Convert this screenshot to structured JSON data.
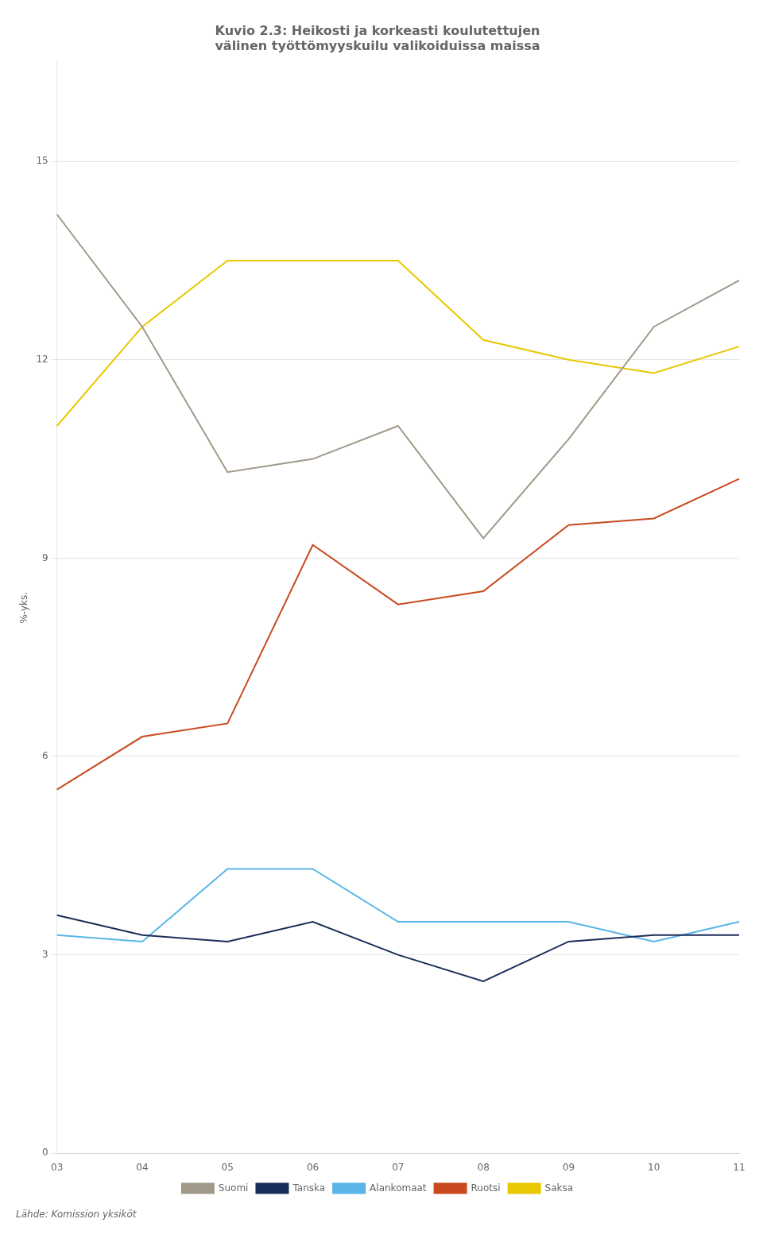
{
  "chart_data": {
    "type": "line",
    "title": "Kuvio 2.3: Heikosti ja korkeasti koulutettujen\nvälinen työttömyyskuilu valikoiduissa maissa",
    "y_label": "%-yks.",
    "annotations": [
      "Lähde: Komission yksiköt"
    ],
    "categories": [
      "03",
      "04",
      "05",
      "06",
      "07",
      "08",
      "09",
      "10",
      "11"
    ],
    "series": [
      {
        "name": "Suomi",
        "color": "#a09888",
        "values": [
          14.2,
          12.5,
          10.3,
          10.5,
          11.0,
          9.3,
          10.8,
          12.5,
          13.2
        ]
      },
      {
        "name": "Tanska",
        "color": "#1a2e5a",
        "values": [
          3.6,
          3.3,
          3.2,
          3.5,
          3.0,
          2.6,
          3.2,
          3.3,
          3.3
        ]
      },
      {
        "name": "Alankomaat",
        "color": "#5ab4e8",
        "values": [
          3.3,
          3.2,
          4.3,
          4.3,
          3.5,
          3.5,
          3.5,
          3.2,
          3.5
        ]
      },
      {
        "name": "Ruotsi",
        "color": "#c94a1e",
        "values": [
          5.5,
          6.3,
          6.5,
          9.2,
          8.3,
          8.5,
          9.5,
          9.6,
          10.2
        ]
      },
      {
        "name": "Saksa",
        "color": "#e8c800",
        "values": [
          11.0,
          12.5,
          13.5,
          13.5,
          13.5,
          12.3,
          12.0,
          11.8,
          12.2
        ]
      }
    ],
    "ylim": [
      0,
      16.5
    ],
    "yticks": [
      0,
      3,
      6,
      9,
      12,
      15
    ],
    "grid": "y",
    "legend": "bottom"
  }
}
